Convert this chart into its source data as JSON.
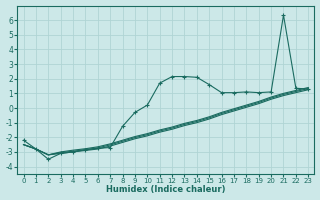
{
  "xlabel": "Humidex (Indice chaleur)",
  "xlim": [
    -0.5,
    23.5
  ],
  "ylim": [
    -4.5,
    7.0
  ],
  "background_color": "#cce8e8",
  "grid_color": "#b0d4d4",
  "line_color": "#1a6b60",
  "xticks": [
    0,
    1,
    2,
    3,
    4,
    5,
    6,
    7,
    8,
    9,
    10,
    11,
    12,
    13,
    14,
    15,
    16,
    17,
    18,
    19,
    20,
    21,
    22,
    23
  ],
  "yticks": [
    -4,
    -3,
    -2,
    -1,
    0,
    1,
    2,
    3,
    4,
    5,
    6
  ],
  "series": [
    {
      "x": [
        0,
        1,
        2,
        3,
        4,
        5,
        6,
        7,
        8,
        9,
        10,
        11,
        12,
        13,
        14,
        15,
        16,
        17,
        18,
        19,
        20,
        21,
        22,
        23
      ],
      "y": [
        -2.2,
        -2.8,
        -3.5,
        -3.1,
        -3.0,
        -2.85,
        -2.75,
        -2.7,
        -1.25,
        -0.3,
        0.2,
        1.7,
        2.15,
        2.15,
        2.1,
        1.6,
        1.05,
        1.05,
        1.1,
        1.05,
        1.1,
        6.35,
        1.35,
        1.3
      ],
      "marker": "+"
    },
    {
      "x": [
        0,
        1,
        2,
        3,
        4,
        5,
        6,
        7,
        8,
        9,
        10,
        11,
        12,
        13,
        14,
        15,
        16,
        17,
        18,
        19,
        20,
        21,
        22,
        23
      ],
      "y": [
        -2.5,
        -2.8,
        -3.2,
        -3.1,
        -3.0,
        -2.9,
        -2.8,
        -2.6,
        -2.35,
        -2.1,
        -1.9,
        -1.65,
        -1.45,
        -1.2,
        -1.0,
        -0.75,
        -0.45,
        -0.2,
        0.05,
        0.3,
        0.6,
        0.85,
        1.05,
        1.25
      ],
      "marker": null
    },
    {
      "x": [
        0,
        1,
        2,
        3,
        4,
        5,
        6,
        7,
        8,
        9,
        10,
        11,
        12,
        13,
        14,
        15,
        16,
        17,
        18,
        19,
        20,
        21,
        22,
        23
      ],
      "y": [
        -2.5,
        -2.8,
        -3.2,
        -3.05,
        -2.95,
        -2.85,
        -2.72,
        -2.52,
        -2.27,
        -2.02,
        -1.82,
        -1.57,
        -1.37,
        -1.12,
        -0.92,
        -0.67,
        -0.37,
        -0.12,
        0.13,
        0.38,
        0.68,
        0.93,
        1.13,
        1.33
      ],
      "marker": null
    },
    {
      "x": [
        0,
        1,
        2,
        3,
        4,
        5,
        6,
        7,
        8,
        9,
        10,
        11,
        12,
        13,
        14,
        15,
        16,
        17,
        18,
        19,
        20,
        21,
        22,
        23
      ],
      "y": [
        -2.5,
        -2.8,
        -3.2,
        -3.0,
        -2.88,
        -2.78,
        -2.65,
        -2.45,
        -2.2,
        -1.95,
        -1.75,
        -1.5,
        -1.3,
        -1.05,
        -0.85,
        -0.6,
        -0.3,
        -0.05,
        0.2,
        0.45,
        0.75,
        1.0,
        1.2,
        1.4
      ],
      "marker": null
    }
  ]
}
